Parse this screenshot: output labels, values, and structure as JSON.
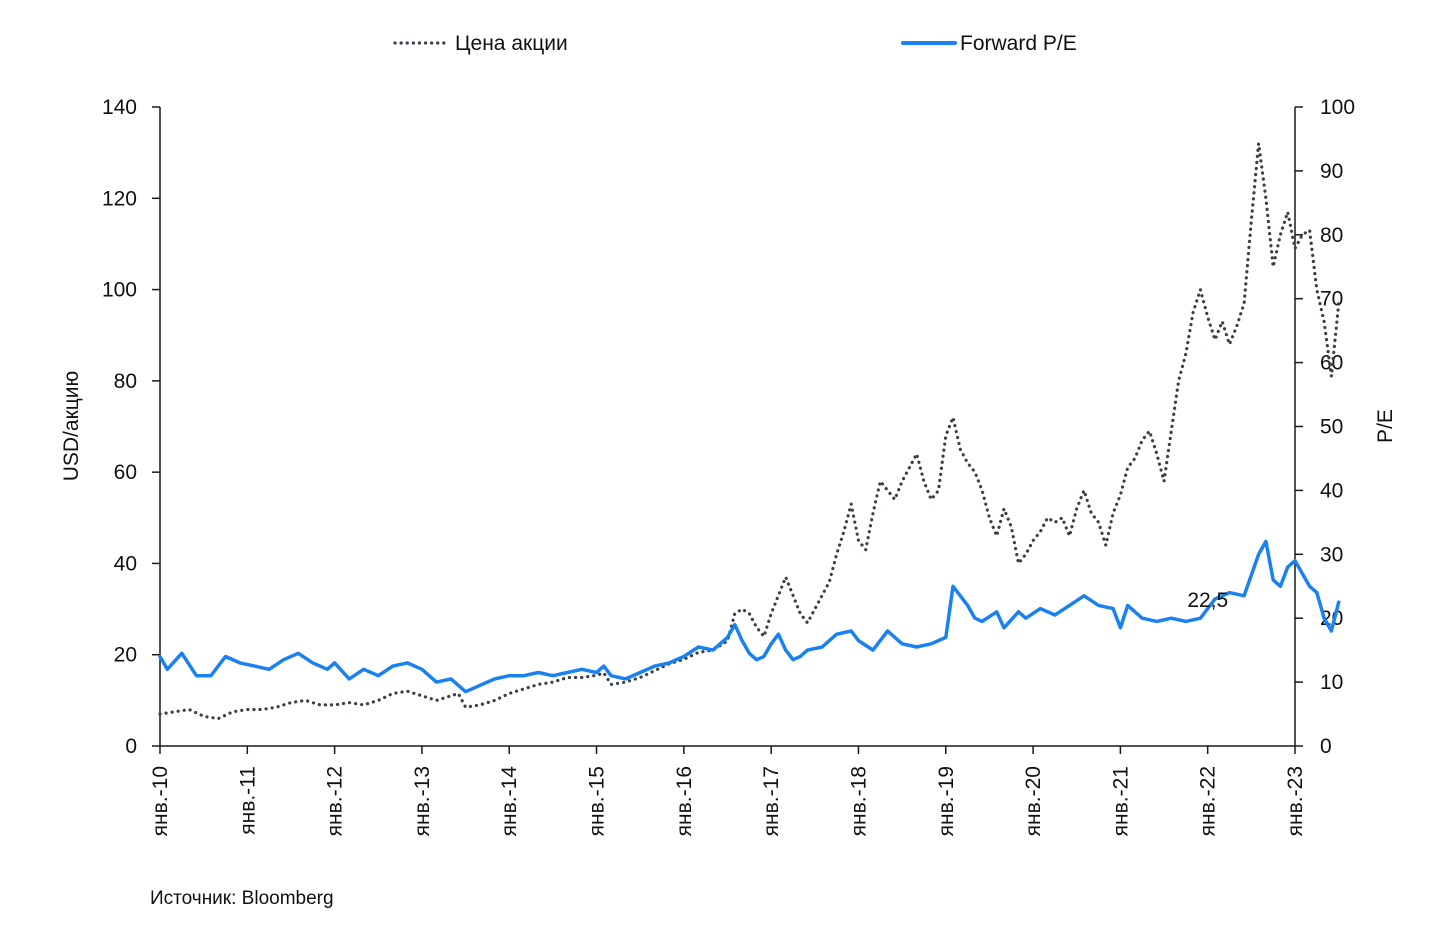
{
  "chart_data": {
    "type": "line",
    "title": "",
    "source": "Источник: Bloomberg",
    "x_axis": {
      "tick_labels": [
        "янв.-10",
        "янв.-11",
        "янв.-12",
        "янв.-13",
        "янв.-14",
        "янв.-15",
        "янв.-16",
        "янв.-17",
        "янв.-18",
        "янв.-19",
        "янв.-20",
        "янв.-21",
        "янв.-22",
        "янв.-23"
      ],
      "range": [
        "2010-01",
        "2023-01"
      ]
    },
    "y_left": {
      "label": "USD/акцию",
      "range": [
        0,
        140
      ],
      "tick_labels": [
        "0",
        "20",
        "40",
        "60",
        "80",
        "100",
        "120",
        "140"
      ]
    },
    "y_right": {
      "label": "P/E",
      "range": [
        0,
        100
      ],
      "tick_labels": [
        "0",
        "10",
        "20",
        "30",
        "40",
        "50",
        "60",
        "70",
        "80",
        "90",
        "100"
      ]
    },
    "grid": false,
    "legend": {
      "placement": "top-center"
    },
    "annotations": [
      {
        "text": "22,5",
        "series": "Forward P/E",
        "x": "2021-08",
        "y": 22.5
      }
    ],
    "series": [
      {
        "name": "Цена акции",
        "axis": "left",
        "style": "dotted",
        "color": "#3a3f4b",
        "points": [
          [
            "2010-01",
            7
          ],
          [
            "2010-03",
            7.5
          ],
          [
            "2010-05",
            8
          ],
          [
            "2010-07",
            6.5
          ],
          [
            "2010-09",
            6
          ],
          [
            "2010-11",
            7.5
          ],
          [
            "2011-01",
            8
          ],
          [
            "2011-03",
            8
          ],
          [
            "2011-05",
            8.5
          ],
          [
            "2011-07",
            9.5
          ],
          [
            "2011-09",
            10
          ],
          [
            "2011-11",
            9
          ],
          [
            "2012-01",
            9
          ],
          [
            "2012-03",
            9.5
          ],
          [
            "2012-05",
            9
          ],
          [
            "2012-07",
            10
          ],
          [
            "2012-09",
            11.5
          ],
          [
            "2012-11",
            12
          ],
          [
            "2013-01",
            11
          ],
          [
            "2013-03",
            10
          ],
          [
            "2013-05",
            11
          ],
          [
            "2013-06",
            11.5
          ],
          [
            "2013-07",
            8.5
          ],
          [
            "2013-09",
            9
          ],
          [
            "2013-11",
            10
          ],
          [
            "2014-01",
            11.5
          ],
          [
            "2014-03",
            12.5
          ],
          [
            "2014-05",
            13.5
          ],
          [
            "2014-07",
            14
          ],
          [
            "2014-09",
            15
          ],
          [
            "2014-11",
            15
          ],
          [
            "2015-01",
            15.5
          ],
          [
            "2015-02",
            16
          ],
          [
            "2015-03",
            13.5
          ],
          [
            "2015-05",
            14
          ],
          [
            "2015-07",
            15
          ],
          [
            "2015-09",
            16.5
          ],
          [
            "2015-11",
            18
          ],
          [
            "2016-01",
            19
          ],
          [
            "2016-03",
            20.5
          ],
          [
            "2016-05",
            21
          ],
          [
            "2016-07",
            23
          ],
          [
            "2016-08",
            29
          ],
          [
            "2016-09",
            30
          ],
          [
            "2016-10",
            29
          ],
          [
            "2016-11",
            26
          ],
          [
            "2016-12",
            24
          ],
          [
            "2017-01",
            29
          ],
          [
            "2017-02",
            33
          ],
          [
            "2017-03",
            37
          ],
          [
            "2017-04",
            33
          ],
          [
            "2017-05",
            29
          ],
          [
            "2017-06",
            27
          ],
          [
            "2017-07",
            30
          ],
          [
            "2017-08",
            33
          ],
          [
            "2017-09",
            36
          ],
          [
            "2017-10",
            42
          ],
          [
            "2017-11",
            47
          ],
          [
            "2017-12",
            53
          ],
          [
            "2018-01",
            45
          ],
          [
            "2018-02",
            43
          ],
          [
            "2018-03",
            51
          ],
          [
            "2018-04",
            58
          ],
          [
            "2018-05",
            56
          ],
          [
            "2018-06",
            54
          ],
          [
            "2018-07",
            58
          ],
          [
            "2018-08",
            61
          ],
          [
            "2018-09",
            64
          ],
          [
            "2018-10",
            58
          ],
          [
            "2018-11",
            54
          ],
          [
            "2018-12",
            56
          ],
          [
            "2019-01",
            68
          ],
          [
            "2019-02",
            72
          ],
          [
            "2019-03",
            65
          ],
          [
            "2019-04",
            62
          ],
          [
            "2019-05",
            60
          ],
          [
            "2019-06",
            56
          ],
          [
            "2019-07",
            50
          ],
          [
            "2019-08",
            46
          ],
          [
            "2019-09",
            52
          ],
          [
            "2019-10",
            48
          ],
          [
            "2019-11",
            40
          ],
          [
            "2019-12",
            42
          ],
          [
            "2020-01",
            45
          ],
          [
            "2020-02",
            47
          ],
          [
            "2020-03",
            50
          ],
          [
            "2020-04",
            49
          ],
          [
            "2020-05",
            50
          ],
          [
            "2020-06",
            46
          ],
          [
            "2020-07",
            52
          ],
          [
            "2020-08",
            56
          ],
          [
            "2020-09",
            51
          ],
          [
            "2020-10",
            49
          ],
          [
            "2020-11",
            44
          ],
          [
            "2020-12",
            51
          ],
          [
            "2021-01",
            55
          ],
          [
            "2021-02",
            61
          ],
          [
            "2021-03",
            63
          ],
          [
            "2021-04",
            67
          ],
          [
            "2021-05",
            69
          ],
          [
            "2021-06",
            64
          ],
          [
            "2021-07",
            58
          ],
          [
            "2021-08",
            69
          ],
          [
            "2021-09",
            80
          ],
          [
            "2021-10",
            86
          ],
          [
            "2021-11",
            95
          ],
          [
            "2021-12",
            100
          ],
          [
            "2022-01",
            94
          ],
          [
            "2022-02",
            89
          ],
          [
            "2022-03",
            93
          ],
          [
            "2022-04",
            88
          ],
          [
            "2022-05",
            92
          ],
          [
            "2022-06",
            97
          ],
          [
            "2022-07",
            115
          ],
          [
            "2022-08",
            132
          ],
          [
            "2022-09",
            120
          ],
          [
            "2022-10",
            105
          ],
          [
            "2022-11",
            112
          ],
          [
            "2022-12",
            117
          ],
          [
            "2023-01",
            109
          ],
          [
            "2023-02",
            112
          ],
          [
            "2023-03",
            113
          ],
          [
            "2023-04",
            100
          ],
          [
            "2023-05",
            93
          ],
          [
            "2023-06",
            81
          ],
          [
            "2023-07",
            97
          ]
        ]
      },
      {
        "name": "Forward P/E",
        "axis": "right",
        "style": "solid",
        "color": "#1a82f0",
        "points": [
          [
            "2010-01",
            14
          ],
          [
            "2010-02",
            12
          ],
          [
            "2010-04",
            14.5
          ],
          [
            "2010-06",
            11
          ],
          [
            "2010-08",
            11
          ],
          [
            "2010-10",
            14
          ],
          [
            "2010-12",
            13
          ],
          [
            "2011-02",
            12.5
          ],
          [
            "2011-04",
            12
          ],
          [
            "2011-06",
            13.5
          ],
          [
            "2011-08",
            14.5
          ],
          [
            "2011-10",
            13
          ],
          [
            "2011-12",
            12
          ],
          [
            "2012-01",
            13
          ],
          [
            "2012-03",
            10.5
          ],
          [
            "2012-05",
            12
          ],
          [
            "2012-07",
            11
          ],
          [
            "2012-09",
            12.5
          ],
          [
            "2012-11",
            13
          ],
          [
            "2013-01",
            12
          ],
          [
            "2013-03",
            10
          ],
          [
            "2013-05",
            10.5
          ],
          [
            "2013-06",
            9.5
          ],
          [
            "2013-07",
            8.5
          ],
          [
            "2013-09",
            9.5
          ],
          [
            "2013-11",
            10.5
          ],
          [
            "2014-01",
            11
          ],
          [
            "2014-03",
            11
          ],
          [
            "2014-05",
            11.5
          ],
          [
            "2014-07",
            11
          ],
          [
            "2014-09",
            11.5
          ],
          [
            "2014-11",
            12
          ],
          [
            "2015-01",
            11.5
          ],
          [
            "2015-02",
            12.5
          ],
          [
            "2015-03",
            11
          ],
          [
            "2015-05",
            10.5
          ],
          [
            "2015-07",
            11.5
          ],
          [
            "2015-09",
            12.5
          ],
          [
            "2015-11",
            13
          ],
          [
            "2016-01",
            14
          ],
          [
            "2016-03",
            15.5
          ],
          [
            "2016-05",
            15
          ],
          [
            "2016-07",
            17
          ],
          [
            "2016-08",
            19
          ],
          [
            "2016-09",
            16.5
          ],
          [
            "2016-10",
            14.5
          ],
          [
            "2016-11",
            13.5
          ],
          [
            "2016-12",
            14
          ],
          [
            "2017-01",
            16
          ],
          [
            "2017-02",
            17.5
          ],
          [
            "2017-03",
            15
          ],
          [
            "2017-04",
            13.5
          ],
          [
            "2017-05",
            14
          ],
          [
            "2017-06",
            15
          ],
          [
            "2017-08",
            15.5
          ],
          [
            "2017-10",
            17.5
          ],
          [
            "2017-12",
            18
          ],
          [
            "2018-01",
            16.5
          ],
          [
            "2018-03",
            15
          ],
          [
            "2018-05",
            18
          ],
          [
            "2018-07",
            16
          ],
          [
            "2018-09",
            15.5
          ],
          [
            "2018-11",
            16
          ],
          [
            "2019-01",
            17
          ],
          [
            "2019-02",
            25
          ],
          [
            "2019-03",
            23.5
          ],
          [
            "2019-04",
            22
          ],
          [
            "2019-05",
            20
          ],
          [
            "2019-06",
            19.5
          ],
          [
            "2019-08",
            21
          ],
          [
            "2019-09",
            18.5
          ],
          [
            "2019-11",
            21
          ],
          [
            "2019-12",
            20
          ],
          [
            "2020-02",
            21.5
          ],
          [
            "2020-04",
            20.5
          ],
          [
            "2020-06",
            22
          ],
          [
            "2020-08",
            23.5
          ],
          [
            "2020-10",
            22
          ],
          [
            "2020-12",
            21.5
          ],
          [
            "2021-01",
            18.5
          ],
          [
            "2021-02",
            22
          ],
          [
            "2021-04",
            20
          ],
          [
            "2021-06",
            19.5
          ],
          [
            "2021-08",
            20
          ],
          [
            "2021-10",
            19.5
          ],
          [
            "2021-12",
            20
          ],
          [
            "2022-02",
            23
          ],
          [
            "2022-04",
            24
          ],
          [
            "2022-06",
            23.5
          ],
          [
            "2022-08",
            30
          ],
          [
            "2022-09",
            32
          ],
          [
            "2022-10",
            26
          ],
          [
            "2022-11",
            25
          ],
          [
            "2022-12",
            28
          ],
          [
            "2023-01",
            29
          ],
          [
            "2023-02",
            27
          ],
          [
            "2023-03",
            25
          ],
          [
            "2023-04",
            24
          ],
          [
            "2023-05",
            20
          ],
          [
            "2023-06",
            18
          ],
          [
            "2023-07",
            22.5
          ]
        ]
      }
    ]
  }
}
